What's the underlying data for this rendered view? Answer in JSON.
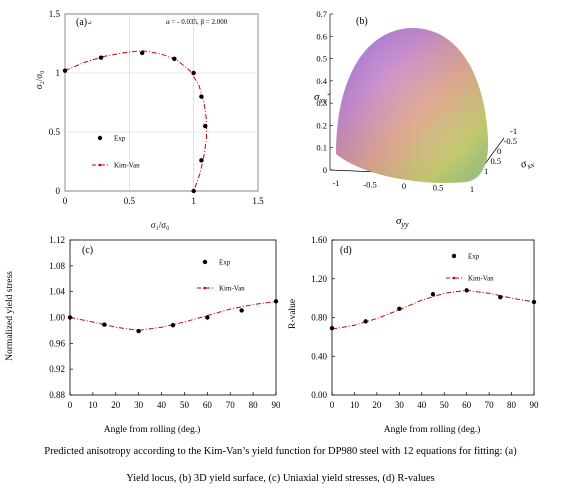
{
  "caption": {
    "line1": "Predicted anisotropy according to the Kim-Van’s yield function for DP980 steel with 12 equations for fitting: (a)",
    "line2": "Yield locus, (b) 3D yield surface, (c) Uniaxial yield stresses, (d) R-values"
  },
  "colors": {
    "model_line": "#cc0000",
    "marker": "#000000"
  },
  "chart_data": [
    {
      "id": "a",
      "type": "scatter",
      "panel_label": "(a)",
      "panel_label_suffix": "↵",
      "annotation": "α = - 0.035, β = 2.000",
      "xlabel": "σ₁/σ₀",
      "ylabel": "σ₂/σ₀",
      "xlim": [
        0,
        1.5
      ],
      "ylim": [
        0,
        1.5
      ],
      "xticks": [
        "0",
        "0.5",
        "1",
        "1.5"
      ],
      "xtick_values": [
        0,
        0.5,
        1,
        1.5
      ],
      "yticks": [
        "0",
        "0.5",
        "1",
        "1.5"
      ],
      "ytick_values": [
        0,
        0.5,
        1,
        1.5
      ],
      "grid": true,
      "legend": [
        {
          "label": "Exp",
          "kind": "marker"
        },
        {
          "label": "Kim-Van",
          "kind": "line"
        }
      ],
      "series": [
        {
          "name": "Exp",
          "kind": "marker",
          "points": [
            [
              0.0,
              1.02
            ],
            [
              0.28,
              1.13
            ],
            [
              0.6,
              1.17
            ],
            [
              0.85,
              1.12
            ],
            [
              1.0,
              1.0
            ],
            [
              1.06,
              0.8
            ],
            [
              1.09,
              0.55
            ],
            [
              1.06,
              0.26
            ],
            [
              1.0,
              0.0
            ]
          ]
        },
        {
          "name": "Kim-Van",
          "kind": "line",
          "points": [
            [
              0.0,
              1.02
            ],
            [
              0.15,
              1.09
            ],
            [
              0.3,
              1.14
            ],
            [
              0.45,
              1.17
            ],
            [
              0.6,
              1.19
            ],
            [
              0.75,
              1.16
            ],
            [
              0.87,
              1.11
            ],
            [
              0.97,
              1.02
            ],
            [
              1.04,
              0.9
            ],
            [
              1.08,
              0.75
            ],
            [
              1.1,
              0.6
            ],
            [
              1.1,
              0.45
            ],
            [
              1.08,
              0.3
            ],
            [
              1.05,
              0.15
            ],
            [
              1.0,
              0.0
            ]
          ]
        }
      ]
    },
    {
      "id": "b",
      "type": "surface",
      "panel_label": "(b)",
      "zlabel": "σ_xy",
      "zlabel_suffix": "↵",
      "xlabel": "σ_yy",
      "ylabel": "σ_xx",
      "zticks": [
        "0",
        "0.1",
        "0.2",
        "0.3",
        "0.4",
        "0.5",
        "0.6",
        "0.7"
      ],
      "zlim": [
        0,
        0.7
      ],
      "xticks": [
        "-1",
        "-0.5",
        "0",
        "0.5",
        "1"
      ],
      "xlim": [
        -1,
        1
      ],
      "yticks": [
        "-1",
        "-0.5",
        "0",
        "0.5",
        "1"
      ],
      "ylim": [
        -1,
        1
      ]
    },
    {
      "id": "c",
      "type": "line",
      "panel_label": "(c)",
      "xlabel": "Angle from rolling (deg.)",
      "ylabel": "Normalized yield stress",
      "xlim": [
        0,
        90
      ],
      "ylim": [
        0.88,
        1.12
      ],
      "xticks": [
        "0",
        "10",
        "20",
        "30",
        "40",
        "50",
        "60",
        "70",
        "80",
        "90"
      ],
      "xtick_values": [
        0,
        10,
        20,
        30,
        40,
        50,
        60,
        70,
        80,
        90
      ],
      "yticks": [
        "0.88",
        "0.92",
        "0.96",
        "1.00",
        "1.04",
        "1.08",
        "1.12"
      ],
      "ytick_values": [
        0.88,
        0.92,
        0.96,
        1.0,
        1.04,
        1.08,
        1.12
      ],
      "grid": false,
      "legend": [
        {
          "label": "Exp",
          "kind": "marker"
        },
        {
          "label": "Kim-Van",
          "kind": "line"
        }
      ],
      "series": [
        {
          "name": "Exp",
          "kind": "marker",
          "points": [
            [
              0,
              1.0
            ],
            [
              15,
              0.989
            ],
            [
              30,
              0.979
            ],
            [
              45,
              0.988
            ],
            [
              60,
              1.0
            ],
            [
              75,
              1.011
            ],
            [
              90,
              1.025
            ]
          ]
        },
        {
          "name": "Kim-Van",
          "kind": "line",
          "points": [
            [
              0,
              1.0
            ],
            [
              10,
              0.993
            ],
            [
              20,
              0.985
            ],
            [
              30,
              0.98
            ],
            [
              40,
              0.985
            ],
            [
              50,
              0.993
            ],
            [
              60,
              1.003
            ],
            [
              70,
              1.013
            ],
            [
              80,
              1.02
            ],
            [
              90,
              1.025
            ]
          ]
        }
      ]
    },
    {
      "id": "d",
      "type": "line",
      "panel_label": "(d)",
      "xlabel": "Angle from rolling (deg.)",
      "ylabel": "R-value",
      "xlim": [
        0,
        90
      ],
      "ylim": [
        0,
        1.6
      ],
      "xticks": [
        "0",
        "10",
        "20",
        "30",
        "40",
        "50",
        "60",
        "70",
        "80",
        "90"
      ],
      "xtick_values": [
        0,
        10,
        20,
        30,
        40,
        50,
        60,
        70,
        80,
        90
      ],
      "yticks": [
        "0.00",
        "0.40",
        "0.80",
        "1.20",
        "1.60"
      ],
      "ytick_values": [
        0,
        0.4,
        0.8,
        1.2,
        1.6
      ],
      "grid": false,
      "legend": [
        {
          "label": "Exp",
          "kind": "marker"
        },
        {
          "label": "Kim-Van",
          "kind": "line"
        }
      ],
      "series": [
        {
          "name": "Exp",
          "kind": "marker",
          "points": [
            [
              0,
              0.69
            ],
            [
              15,
              0.76
            ],
            [
              30,
              0.89
            ],
            [
              45,
              1.04
            ],
            [
              60,
              1.08
            ],
            [
              75,
              1.01
            ],
            [
              90,
              0.96
            ]
          ]
        },
        {
          "name": "Kim-Van",
          "kind": "line",
          "points": [
            [
              0,
              0.68
            ],
            [
              10,
              0.72
            ],
            [
              20,
              0.79
            ],
            [
              30,
              0.88
            ],
            [
              40,
              0.98
            ],
            [
              50,
              1.05
            ],
            [
              60,
              1.08
            ],
            [
              70,
              1.05
            ],
            [
              80,
              1.0
            ],
            [
              90,
              0.96
            ]
          ]
        }
      ]
    }
  ]
}
